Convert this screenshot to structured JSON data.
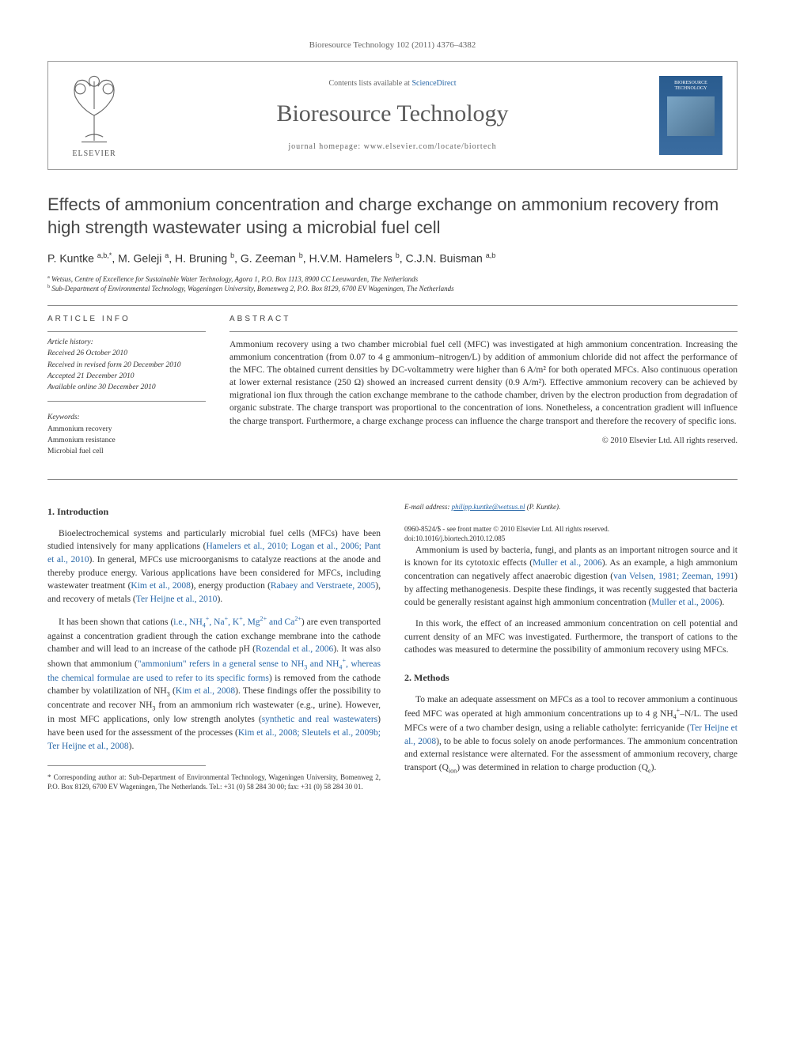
{
  "journal_ref": "Bioresource Technology 102 (2011) 4376–4382",
  "header": {
    "publisher": "ELSEVIER",
    "contents_pre": "Contents lists available at ",
    "contents_link": "ScienceDirect",
    "journal_name": "Bioresource Technology",
    "homepage_pre": "journal homepage: ",
    "homepage_url": "www.elsevier.com/locate/biortech",
    "cover_label": "BIORESOURCE TECHNOLOGY"
  },
  "title": "Effects of ammonium concentration and charge exchange on ammonium recovery from high strength wastewater using a microbial fuel cell",
  "authors_html": "P. Kuntke <sup>a,b,*</sup>, M. Geleji <sup>a</sup>, H. Bruning <sup>b</sup>, G. Zeeman <sup>b</sup>, H.V.M. Hamelers <sup>b</sup>, C.J.N. Buisman <sup>a,b</sup>",
  "affiliations": [
    {
      "sup": "a",
      "text": "Wetsus, Centre of Excellence for Sustainable Water Technology, Agora 1, P.O. Box 1113, 8900 CC Leeuwarden, The Netherlands"
    },
    {
      "sup": "b",
      "text": "Sub-Department of Environmental Technology, Wageningen University, Bomenweg 2, P.O. Box 8129, 6700 EV Wageningen, The Netherlands"
    }
  ],
  "info": {
    "head": "ARTICLE INFO",
    "history_label": "Article history:",
    "history": [
      "Received 26 October 2010",
      "Received in revised form 20 December 2010",
      "Accepted 21 December 2010",
      "Available online 30 December 2010"
    ],
    "keywords_label": "Keywords:",
    "keywords": [
      "Ammonium recovery",
      "Ammonium resistance",
      "Microbial fuel cell"
    ]
  },
  "abstract": {
    "head": "ABSTRACT",
    "text": "Ammonium recovery using a two chamber microbial fuel cell (MFC) was investigated at high ammonium concentration. Increasing the ammonium concentration (from 0.07 to 4 g ammonium–nitrogen/L) by addition of ammonium chloride did not affect the performance of the MFC. The obtained current densities by DC-voltammetry were higher than 6 A/m² for both operated MFCs. Also continuous operation at lower external resistance (250 Ω) showed an increased current density (0.9 A/m²). Effective ammonium recovery can be achieved by migrational ion flux through the cation exchange membrane to the cathode chamber, driven by the electron production from degradation of organic substrate. The charge transport was proportional to the concentration of ions. Nonetheless, a concentration gradient will influence the charge transport. Furthermore, a charge exchange process can influence the charge transport and therefore the recovery of specific ions.",
    "copyright": "© 2010 Elsevier Ltd. All rights reserved."
  },
  "sections": {
    "intro_head": "1. Introduction",
    "intro_p1": "Bioelectrochemical systems and particularly microbial fuel cells (MFCs) have been studied intensively for many applications (Hamelers et al., 2010; Logan et al., 2006; Pant et al., 2010). In general, MFCs use microorganisms to catalyze reactions at the anode and thereby produce energy. Various applications have been considered for MFCs, including wastewater treatment (Kim et al., 2008), energy production (Rabaey and Verstraete, 2005), and recovery of metals (Ter Heijne et al., 2010).",
    "intro_p2": "It has been shown that cations (i.e., NH₄⁺, Na⁺, K⁺, Mg²⁺ and Ca²⁺) are even transported against a concentration gradient through the cation exchange membrane into the cathode chamber and will lead to an increase of the cathode pH (Rozendal et al., 2006). It was also shown that ammonium (\"ammonium\" refers in a general sense to NH₃ and NH₄⁺, whereas the chemical formulae are used to refer to its specific forms) is removed from the cathode chamber by volatilization of NH₃ (Kim et al., 2008). These findings offer the possibility to concentrate and recover NH₃ from an ammonium rich wastewater (e.g., urine). However, in most MFC applications, only low strength anolytes (synthetic and real wastewaters) have been used for the assessment of the processes (Kim et al., 2008; Sleutels et al., 2009b; Ter Heijne et al., 2008).",
    "intro_p3": "Ammonium is used by bacteria, fungi, and plants as an important nitrogen source and it is known for its cytotoxic effects (Muller et al., 2006). As an example, a high ammonium concentration can negatively affect anaerobic digestion (van Velsen, 1981; Zeeman, 1991) by affecting methanogenesis. Despite these findings, it was recently suggested that bacteria could be generally resistant against high ammonium concentration (Muller et al., 2006).",
    "intro_p4": "In this work, the effect of an increased ammonium concentration on cell potential and current density of an MFC was investigated. Furthermore, the transport of cations to the cathodes was measured to determine the possibility of ammonium recovery using MFCs.",
    "methods_head": "2. Methods",
    "methods_p1": "To make an adequate assessment on MFCs as a tool to recover ammonium a continuous feed MFC was operated at high ammonium concentrations up to 4 g NH₄⁺–N/L. The used MFCs were of a two chamber design, using a reliable catholyte: ferricyanide (Ter Heijne et al., 2008), to be able to focus solely on anode performances. The ammonium concentration and external resistance were alternated. For the assessment of ammonium recovery, charge transport (Qion) was determined in relation to charge production (Qe)."
  },
  "corresp": {
    "star": "* ",
    "text": "Corresponding author at: Sub-Department of Environmental Technology, Wageningen University, Bomenweg 2, P.O. Box 8129, 6700 EV Wageningen, The Netherlands. Tel.: +31 (0) 58 284 30 00; fax: +31 (0) 58 284 30 01.",
    "email_label": "E-mail address: ",
    "email": "philipp.kuntke@wetsus.nl",
    "email_who": " (P. Kuntke)."
  },
  "doi": {
    "line1": "0960-8524/$ - see front matter © 2010 Elsevier Ltd. All rights reserved.",
    "line2": "doi:10.1016/j.biortech.2010.12.085"
  },
  "colors": {
    "link": "#2968a8",
    "rule": "#888888",
    "text": "#333333",
    "cover_bg_top": "#2a5c8f",
    "cover_bg_bottom": "#3a6ca0"
  },
  "fonts": {
    "body": "Georgia",
    "title": "Trebuchet MS",
    "title_size_pt": 17,
    "body_size_pt": 9,
    "abstract_size_pt": 9,
    "journal_name_size_pt": 22
  }
}
